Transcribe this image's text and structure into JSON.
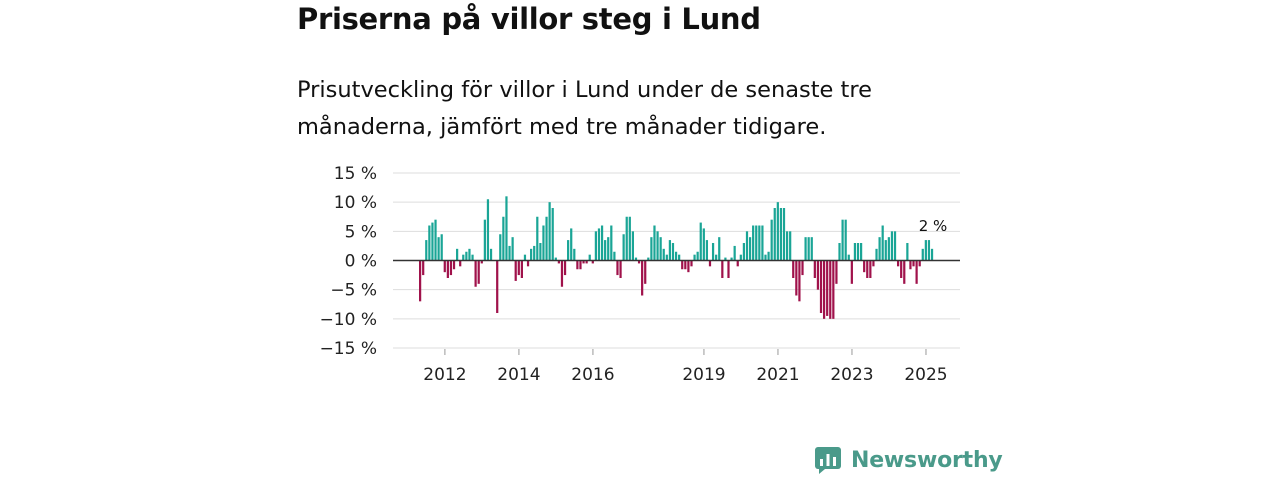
{
  "title": "Priserna på villor steg i Lund",
  "subtitle": "Prisutveckling för villor i Lund under de senaste tre månaderna, jämfört med tre månader tidigare.",
  "brand": {
    "name": "Newsworthy",
    "icon": "newsworthy-logo-icon"
  },
  "colors": {
    "positive": "#1aa596",
    "negative": "#a0124b",
    "grid": "#dddddd",
    "zero_line": "#333333",
    "brand": "#4a9a8a"
  },
  "chart_data": {
    "type": "bar",
    "title": "Priserna på villor steg i Lund",
    "xlabel": "",
    "ylabel": "",
    "unit": "%",
    "ylim": [
      -15,
      15
    ],
    "y_ticks": [
      15,
      10,
      5,
      0,
      -5,
      -10,
      -15
    ],
    "y_tick_labels": [
      "15 %",
      "10 %",
      "5 %",
      "0 %",
      "−5 %",
      "−10 %",
      "−15 %"
    ],
    "x_tick_labels": [
      {
        "label": "2012",
        "year": 2012
      },
      {
        "label": "2014",
        "year": 2014
      },
      {
        "label": "2016",
        "year": 2016
      },
      {
        "label": "2019",
        "year": 2019
      },
      {
        "label": "2021",
        "year": 2021
      },
      {
        "label": "2023",
        "year": 2023
      },
      {
        "label": "2025",
        "year": 2025
      }
    ],
    "x_start": 2011.3,
    "interval": "monthly",
    "values": [
      -7,
      -2.5,
      3.5,
      6,
      6.5,
      7,
      4,
      4.5,
      -2,
      -3,
      -2.5,
      -1.5,
      2,
      -1,
      1,
      1.5,
      2,
      1,
      -4.5,
      -4,
      -0.5,
      7,
      10.5,
      2,
      0,
      -9,
      4.5,
      7.5,
      11,
      2.5,
      4,
      -3.5,
      -2.5,
      -3,
      1,
      -1,
      2,
      2.5,
      7.5,
      3,
      6,
      7.5,
      10,
      9,
      0.5,
      -0.5,
      -4.5,
      -2.5,
      3.5,
      5.5,
      2,
      -1.5,
      -1.5,
      -0.5,
      -0.5,
      1,
      -0.5,
      5,
      5.5,
      6,
      3.5,
      4,
      6,
      1.5,
      -2.5,
      -3,
      4.5,
      7.5,
      7.5,
      5,
      0.5,
      -0.5,
      -6,
      -4,
      0.5,
      4,
      6,
      5,
      4,
      2,
      1,
      3.5,
      3,
      1.5,
      1,
      -1.5,
      -1.5,
      -2,
      -1,
      1,
      1.5,
      6.5,
      5.5,
      3.5,
      -1,
      3,
      1,
      4,
      -3,
      0.5,
      -3,
      0.5,
      2.5,
      -1,
      1,
      3,
      5,
      4,
      6,
      6,
      6,
      6,
      1,
      1.5,
      7,
      9,
      10,
      9,
      9,
      5,
      5,
      -3,
      -6,
      -7,
      -2.5,
      4,
      4,
      4,
      -3,
      -5,
      -9,
      -10,
      -9.5,
      -10,
      -10,
      -4,
      3,
      7,
      7,
      1,
      -4,
      3,
      3,
      3,
      -2,
      -3,
      -3,
      -1,
      2,
      4,
      6,
      3.5,
      4,
      5,
      5,
      -1,
      -3,
      -4,
      3,
      -1.5,
      -1,
      -4,
      -1,
      2,
      3.5,
      3.5,
      2
    ],
    "last_value_label": "2 %"
  }
}
